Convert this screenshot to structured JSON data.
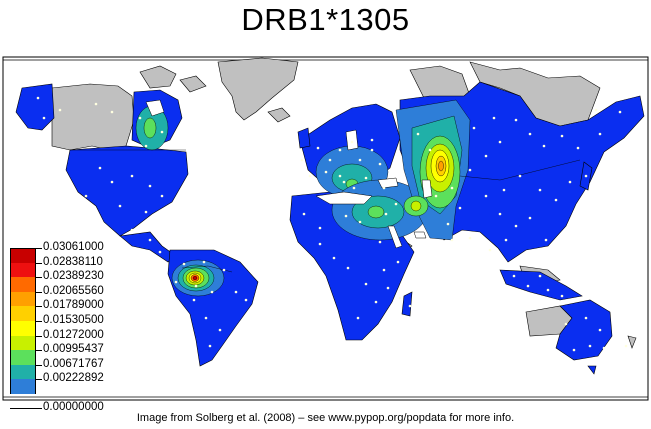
{
  "title": "DRB1*1305",
  "caption": "Image from Solberg et al. (2008) – see www.pypop.org/popdata for more info.",
  "legend": {
    "levels": [
      {
        "label": "0.03061000",
        "color": "#c80000"
      },
      {
        "label": "0.02838110",
        "color": "#ee1010"
      },
      {
        "label": "0.02389230",
        "color": "#ff6a00"
      },
      {
        "label": "0.02065560",
        "color": "#ffa000"
      },
      {
        "label": "0.01789000",
        "color": "#ffd000"
      },
      {
        "label": "0.01530500",
        "color": "#ffff00"
      },
      {
        "label": "0.01272000",
        "color": "#c8f000"
      },
      {
        "label": "0.00995437",
        "color": "#5ce05c"
      },
      {
        "label": "0.00671767",
        "color": "#20b0a8"
      },
      {
        "label": "0.00222892",
        "color": "#2e7ed8"
      },
      {
        "label": "0.00000000",
        "color": "#0a2ef0"
      }
    ]
  },
  "colors": {
    "base_frequency": "#0a2ef0",
    "no_data": "#c0c0c0",
    "ocean": "#ffffff",
    "site_marker": "#ffffe0"
  }
}
